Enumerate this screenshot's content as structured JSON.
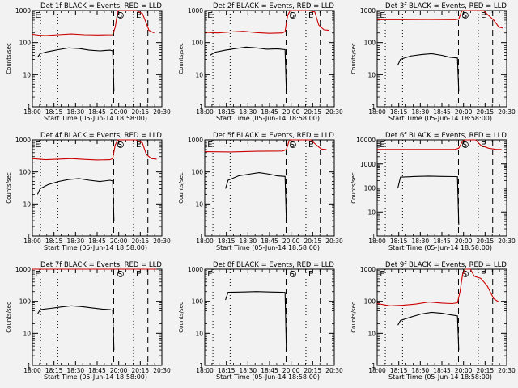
{
  "chart_data": [
    {
      "type": "line",
      "title": "Det 1f BLACK = Events, RED = LLD",
      "xlabel": "Start Time (05-Jun-14 18:58:00)",
      "ylabel": "Counts/sec",
      "x_ticks": [
        "18:00",
        "18:15",
        "18:30",
        "18:45",
        "20:00",
        "20:15",
        "20:30"
      ],
      "y_ticks": [
        "1",
        "10",
        "100",
        "1000"
      ],
      "ylim": [
        1,
        1000
      ],
      "y_scale": "log",
      "vline_labels": [
        "E",
        "S",
        "E"
      ],
      "series": [
        {
          "color": "#cc0000",
          "points": [
            [
              0.0,
              180
            ],
            [
              0.05,
              170
            ],
            [
              0.1,
              165
            ],
            [
              0.2,
              175
            ],
            [
              0.3,
              185
            ],
            [
              0.4,
              175
            ],
            [
              0.5,
              172
            ],
            [
              0.62,
              175
            ],
            [
              0.64,
              300
            ],
            [
              0.66,
              1000
            ],
            [
              0.8,
              1000
            ],
            [
              0.85,
              800
            ],
            [
              0.88,
              400
            ],
            [
              0.9,
              240
            ],
            [
              0.94,
              200
            ]
          ]
        },
        {
          "color": "#000000",
          "points": [
            [
              0.04,
              35
            ],
            [
              0.06,
              45
            ],
            [
              0.12,
              52
            ],
            [
              0.2,
              60
            ],
            [
              0.28,
              68
            ],
            [
              0.36,
              65
            ],
            [
              0.44,
              58
            ],
            [
              0.52,
              55
            ],
            [
              0.6,
              58
            ],
            [
              0.62,
              55
            ],
            [
              0.63,
              3
            ]
          ]
        }
      ]
    },
    {
      "type": "line",
      "title": "Det 2f BLACK = Events, RED = LLD",
      "xlabel": "Start Time (05-Jun-14 18:58:00)",
      "ylabel": "Counts/sec",
      "x_ticks": [
        "18:00",
        "18:15",
        "18:30",
        "18:45",
        "20:00",
        "20:15",
        "20:30"
      ],
      "y_ticks": [
        "1",
        "10",
        "100",
        "1000"
      ],
      "ylim": [
        1,
        1000
      ],
      "y_scale": "log",
      "vline_labels": [
        "E",
        "S",
        "E"
      ],
      "series": [
        {
          "color": "#cc0000",
          "points": [
            [
              0.0,
              210
            ],
            [
              0.1,
              200
            ],
            [
              0.2,
              215
            ],
            [
              0.3,
              225
            ],
            [
              0.4,
              205
            ],
            [
              0.5,
              195
            ],
            [
              0.6,
              200
            ],
            [
              0.62,
              220
            ],
            [
              0.64,
              700
            ],
            [
              0.66,
              1000
            ],
            [
              0.8,
              1000
            ],
            [
              0.85,
              900
            ],
            [
              0.88,
              350
            ],
            [
              0.92,
              250
            ],
            [
              0.96,
              240
            ]
          ]
        },
        {
          "color": "#000000",
          "points": [
            [
              0.04,
              40
            ],
            [
              0.08,
              50
            ],
            [
              0.16,
              58
            ],
            [
              0.24,
              65
            ],
            [
              0.32,
              72
            ],
            [
              0.4,
              68
            ],
            [
              0.48,
              62
            ],
            [
              0.56,
              64
            ],
            [
              0.62,
              60
            ],
            [
              0.63,
              3
            ]
          ]
        }
      ]
    },
    {
      "type": "line",
      "title": "Det 3f BLACK = Events, RED = LLD",
      "xlabel": "Start Time (05-Jun-14 18:58:00)",
      "ylabel": "Counts/sec",
      "x_ticks": [
        "18:00",
        "18:15",
        "18:30",
        "18:45",
        "20:00",
        "20:15",
        "20:30"
      ],
      "y_ticks": [
        "1",
        "10",
        "100",
        "1000"
      ],
      "ylim": [
        1,
        1000
      ],
      "y_scale": "log",
      "vline_labels": [
        "E",
        "S",
        "E"
      ],
      "series": [
        {
          "color": "#cc0000",
          "points": [
            [
              0.0,
              520
            ],
            [
              0.2,
              520
            ],
            [
              0.4,
              525
            ],
            [
              0.6,
              520
            ],
            [
              0.63,
              540
            ],
            [
              0.65,
              900
            ],
            [
              0.66,
              1000
            ],
            [
              0.82,
              1000
            ],
            [
              0.86,
              700
            ],
            [
              0.9,
              500
            ],
            [
              0.94,
              300
            ],
            [
              0.97,
              280
            ]
          ]
        },
        {
          "color": "#000000",
          "points": [
            [
              0.16,
              20
            ],
            [
              0.18,
              30
            ],
            [
              0.26,
              38
            ],
            [
              0.34,
              42
            ],
            [
              0.42,
              45
            ],
            [
              0.5,
              40
            ],
            [
              0.56,
              35
            ],
            [
              0.62,
              33
            ],
            [
              0.63,
              3
            ]
          ]
        }
      ]
    },
    {
      "type": "line",
      "title": "Det 4f BLACK = Events, RED = LLD",
      "xlabel": "Start Time (05-Jun-14 18:58:00)",
      "ylabel": "Counts/sec",
      "x_ticks": [
        "18:00",
        "18:15",
        "18:30",
        "18:45",
        "20:00",
        "20:15",
        "20:30"
      ],
      "y_ticks": [
        "1",
        "10",
        "100",
        "1000"
      ],
      "ylim": [
        1,
        1000
      ],
      "y_scale": "log",
      "vline_labels": [
        "E",
        "S",
        "E"
      ],
      "series": [
        {
          "color": "#cc0000",
          "points": [
            [
              0.0,
              260
            ],
            [
              0.1,
              240
            ],
            [
              0.2,
              250
            ],
            [
              0.3,
              260
            ],
            [
              0.4,
              245
            ],
            [
              0.5,
              235
            ],
            [
              0.6,
              240
            ],
            [
              0.62,
              260
            ],
            [
              0.64,
              700
            ],
            [
              0.66,
              1000
            ],
            [
              0.8,
              1000
            ],
            [
              0.85,
              800
            ],
            [
              0.88,
              350
            ],
            [
              0.92,
              260
            ],
            [
              0.96,
              250
            ]
          ]
        },
        {
          "color": "#000000",
          "points": [
            [
              0.04,
              20
            ],
            [
              0.06,
              30
            ],
            [
              0.12,
              40
            ],
            [
              0.2,
              50
            ],
            [
              0.28,
              58
            ],
            [
              0.36,
              62
            ],
            [
              0.44,
              55
            ],
            [
              0.52,
              50
            ],
            [
              0.6,
              55
            ],
            [
              0.62,
              52
            ],
            [
              0.63,
              3
            ]
          ]
        }
      ]
    },
    {
      "type": "line",
      "title": "Det 5f BLACK = Events, RED = LLD",
      "xlabel": "Start Time (05-Jun-14 18:58:00)",
      "ylabel": "Counts/sec",
      "x_ticks": [
        "18:00",
        "18:15",
        "18:30",
        "18:45",
        "20:00",
        "20:15",
        "20:30"
      ],
      "y_ticks": [
        "1",
        "10",
        "100",
        "1000"
      ],
      "ylim": [
        1,
        1000
      ],
      "y_scale": "log",
      "vline_labels": [
        "E",
        "S",
        "E"
      ],
      "series": [
        {
          "color": "#cc0000",
          "points": [
            [
              0.0,
              430
            ],
            [
              0.2,
              420
            ],
            [
              0.4,
              440
            ],
            [
              0.6,
              450
            ],
            [
              0.63,
              500
            ],
            [
              0.65,
              900
            ],
            [
              0.66,
              1000
            ],
            [
              0.82,
              1000
            ],
            [
              0.86,
              700
            ],
            [
              0.9,
              520
            ],
            [
              0.94,
              500
            ]
          ]
        },
        {
          "color": "#000000",
          "points": [
            [
              0.16,
              30
            ],
            [
              0.18,
              55
            ],
            [
              0.26,
              75
            ],
            [
              0.34,
              85
            ],
            [
              0.42,
              95
            ],
            [
              0.5,
              85
            ],
            [
              0.56,
              75
            ],
            [
              0.62,
              72
            ],
            [
              0.63,
              3
            ]
          ]
        }
      ]
    },
    {
      "type": "line",
      "title": "Det 6f BLACK = Events, RED = LLD",
      "xlabel": "Start Time (05-Jun-14 18:58:00)",
      "ylabel": "Counts/sec",
      "x_ticks": [
        "18:00",
        "18:15",
        "18:30",
        "18:45",
        "20:00",
        "20:15",
        "20:30"
      ],
      "y_ticks": [
        "1",
        "10",
        "100",
        "1000",
        "10000"
      ],
      "ylim": [
        1,
        10000
      ],
      "y_scale": "log",
      "vline_labels": [
        "E",
        "S",
        "E"
      ],
      "series": [
        {
          "color": "#cc0000",
          "points": [
            [
              0.0,
              4000
            ],
            [
              0.2,
              4000
            ],
            [
              0.4,
              4000
            ],
            [
              0.6,
              4000
            ],
            [
              0.63,
              4500
            ],
            [
              0.66,
              9000
            ],
            [
              0.68,
              10000
            ],
            [
              0.76,
              10000
            ],
            [
              0.8,
              6000
            ],
            [
              0.86,
              4500
            ],
            [
              0.92,
              4000
            ],
            [
              0.96,
              4000
            ]
          ]
        },
        {
          "color": "#000000",
          "points": [
            [
              0.16,
              100
            ],
            [
              0.18,
              280
            ],
            [
              0.3,
              300
            ],
            [
              0.4,
              310
            ],
            [
              0.5,
              300
            ],
            [
              0.6,
              295
            ],
            [
              0.62,
              290
            ],
            [
              0.63,
              3
            ]
          ]
        }
      ]
    },
    {
      "type": "line",
      "title": "Det 7f BLACK = Events, RED = LLD",
      "xlabel": "Start Time (05-Jun-14 18:58:00)",
      "ylabel": "Counts/sec",
      "x_ticks": [
        "18:00",
        "18:15",
        "18:30",
        "18:45",
        "20:00",
        "20:15",
        "20:30"
      ],
      "y_ticks": [
        "1",
        "10",
        "100",
        "1000"
      ],
      "ylim": [
        1,
        1000
      ],
      "y_scale": "log",
      "vline_labels": [
        "E",
        "S",
        "E"
      ],
      "series": [
        {
          "color": "#cc0000",
          "points": [
            [
              0.0,
              1000
            ],
            [
              0.3,
              1000
            ],
            [
              0.62,
              1000
            ],
            [
              0.66,
              1000
            ],
            [
              0.96,
              1000
            ]
          ]
        },
        {
          "color": "#000000",
          "points": [
            [
              0.04,
              40
            ],
            [
              0.06,
              55
            ],
            [
              0.14,
              60
            ],
            [
              0.22,
              66
            ],
            [
              0.3,
              72
            ],
            [
              0.38,
              68
            ],
            [
              0.46,
              62
            ],
            [
              0.54,
              57
            ],
            [
              0.6,
              55
            ],
            [
              0.62,
              52
            ],
            [
              0.63,
              3
            ]
          ]
        }
      ]
    },
    {
      "type": "line",
      "title": "Det 8f BLACK = Events, RED = LLD",
      "xlabel": "Start Time (05-Jun-14 18:58:00)",
      "ylabel": "Counts/sec",
      "x_ticks": [
        "18:00",
        "18:15",
        "18:30",
        "18:45",
        "20:00",
        "20:15",
        "20:30"
      ],
      "y_ticks": [
        "1",
        "10",
        "100",
        "1000"
      ],
      "ylim": [
        1,
        1000
      ],
      "y_scale": "log",
      "vline_labels": [
        "E",
        "S",
        "E"
      ],
      "series": [
        {
          "color": "#000000",
          "points": [
            [
              0.16,
              110
            ],
            [
              0.18,
              190
            ],
            [
              0.3,
              195
            ],
            [
              0.4,
              200
            ],
            [
              0.5,
              195
            ],
            [
              0.6,
              190
            ],
            [
              0.62,
              188
            ],
            [
              0.63,
              3
            ]
          ]
        }
      ]
    },
    {
      "type": "line",
      "title": "Det 9f BLACK = Events, RED = LLD",
      "xlabel": "Start Time (05-Jun-14 18:58:00)",
      "ylabel": "Counts/sec",
      "x_ticks": [
        "18:00",
        "18:15",
        "18:30",
        "18:45",
        "20:00",
        "20:15",
        "20:30"
      ],
      "y_ticks": [
        "1",
        "10",
        "100",
        "1000"
      ],
      "ylim": [
        1,
        1000
      ],
      "y_scale": "log",
      "vline_labels": [
        "E",
        "S",
        "E"
      ],
      "series": [
        {
          "color": "#cc0000",
          "points": [
            [
              0.0,
              85
            ],
            [
              0.1,
              72
            ],
            [
              0.2,
              75
            ],
            [
              0.3,
              82
            ],
            [
              0.4,
              95
            ],
            [
              0.5,
              88
            ],
            [
              0.58,
              85
            ],
            [
              0.62,
              90
            ],
            [
              0.64,
              200
            ],
            [
              0.66,
              700
            ],
            [
              0.68,
              1000
            ],
            [
              0.72,
              1000
            ],
            [
              0.75,
              600
            ],
            [
              0.8,
              520
            ],
            [
              0.85,
              300
            ],
            [
              0.9,
              120
            ],
            [
              0.94,
              95
            ]
          ]
        },
        {
          "color": "#000000",
          "points": [
            [
              0.16,
              18
            ],
            [
              0.18,
              25
            ],
            [
              0.26,
              32
            ],
            [
              0.34,
              40
            ],
            [
              0.42,
              45
            ],
            [
              0.5,
              42
            ],
            [
              0.56,
              38
            ],
            [
              0.62,
              35
            ],
            [
              0.63,
              3
            ]
          ]
        }
      ]
    }
  ]
}
